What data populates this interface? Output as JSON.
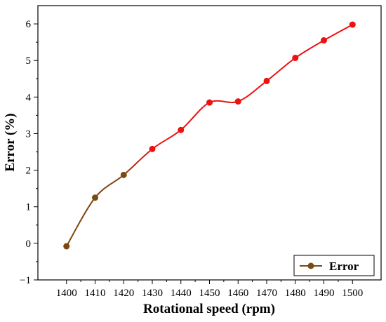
{
  "chart_data": {
    "type": "line",
    "xlabel": "Rotational speed (rpm)",
    "ylabel": "Error (%)",
    "xlim": [
      1390,
      1510
    ],
    "ylim": [
      -1,
      6.5
    ],
    "x_ticks": [
      1400,
      1410,
      1420,
      1430,
      1440,
      1450,
      1460,
      1470,
      1480,
      1490,
      1500
    ],
    "y_ticks": [
      -1,
      0,
      1,
      2,
      3,
      4,
      5,
      6
    ],
    "grid": false,
    "legend_position": "bottom-right",
    "series": [
      {
        "name": "Error",
        "x": [
          1400,
          1410,
          1420,
          1430,
          1440,
          1450,
          1460,
          1470,
          1480,
          1490,
          1500
        ],
        "y": [
          -0.08,
          1.25,
          1.87,
          2.58,
          3.1,
          3.85,
          3.88,
          4.44,
          5.07,
          5.55,
          5.98
        ],
        "color_start": "#7a4a12",
        "color_end": "#ee1111",
        "marker_color": "#ee1111"
      }
    ]
  }
}
